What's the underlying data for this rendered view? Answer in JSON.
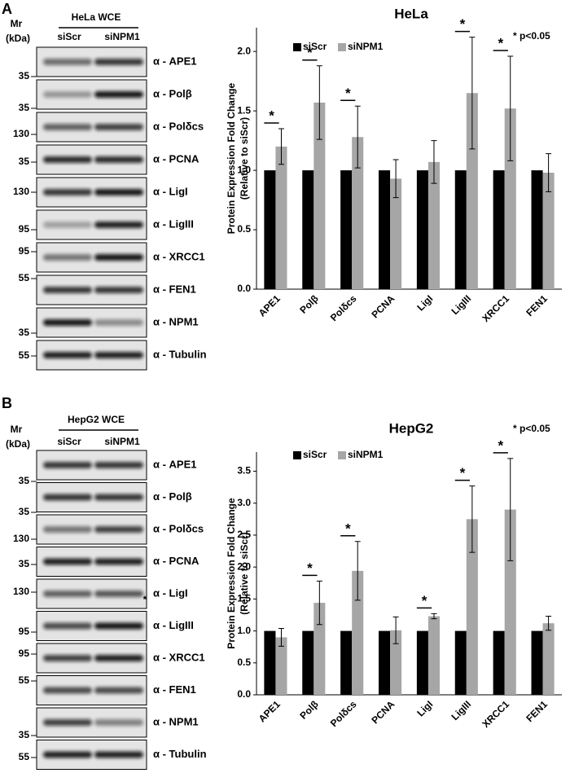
{
  "panels": [
    {
      "label": "A",
      "blot": {
        "mr_label": "Mr",
        "kda_label": "(kDa)",
        "title": "HeLa WCE",
        "lanes": [
          "siScr",
          "siNPM1"
        ],
        "rows": [
          {
            "antibody": "α - APE1",
            "marker": "35"
          },
          {
            "antibody": "α - Polβ",
            "marker": "35"
          },
          {
            "antibody": "α - Polδcs",
            "marker": "130"
          },
          {
            "antibody": "α - PCNA",
            "marker": "35"
          },
          {
            "antibody": "α - LigI",
            "marker": "130"
          },
          {
            "antibody": "α - LigIII",
            "marker": "95"
          },
          {
            "antibody": "α - XRCC1",
            "marker": "95"
          },
          {
            "antibody": "α - FEN1",
            "marker": "55"
          },
          {
            "antibody": "α - NPM1",
            "marker": "35"
          },
          {
            "antibody": "α - Tubulin",
            "marker": "55"
          }
        ]
      }
    },
    {
      "label": "B",
      "blot": {
        "mr_label": "Mr",
        "kda_label": "(kDa)",
        "title": "HepG2 WCE",
        "lanes": [
          "siScr",
          "siNPM1"
        ],
        "rows": [
          {
            "antibody": "α - APE1",
            "marker": "35"
          },
          {
            "antibody": "α - Polβ",
            "marker": "35"
          },
          {
            "antibody": "α - Polδcs",
            "marker": "130"
          },
          {
            "antibody": "α - PCNA",
            "marker": "35"
          },
          {
            "antibody": "α - LigI",
            "marker": "130",
            "note": "*"
          },
          {
            "antibody": "α - LigIII",
            "marker": "95"
          },
          {
            "antibody": "α - XRCC1",
            "marker": "95"
          },
          {
            "antibody": "α - FEN1",
            "marker": "55"
          },
          {
            "antibody": "α - NPM1",
            "marker": "35"
          },
          {
            "antibody": "α - Tubulin",
            "marker": "55"
          }
        ]
      }
    }
  ],
  "chart_data": [
    {
      "type": "bar",
      "title": "HeLa",
      "note": "* p<0.05",
      "ylabel": "Protein Expression Fold Change",
      "ylabel_note": "(Relative to siScr)",
      "categories": [
        "APE1",
        "Polβ",
        "Polδcs",
        "PCNA",
        "LigI",
        "LigIII",
        "XRCC1",
        "FEN1"
      ],
      "series": [
        {
          "name": "siScr",
          "color": "#000000",
          "values": [
            1,
            1,
            1,
            1,
            1,
            1,
            1,
            1
          ]
        },
        {
          "name": "siNPM1",
          "color": "#a6a6a6",
          "values": [
            1.2,
            1.57,
            1.28,
            0.93,
            1.07,
            1.65,
            1.52,
            0.98
          ],
          "errors": [
            0.15,
            0.31,
            0.26,
            0.16,
            0.18,
            0.47,
            0.44,
            0.16
          ]
        }
      ],
      "sig_markers": [
        "*",
        "*",
        "*",
        null,
        null,
        "*",
        "*",
        null
      ],
      "ylim": [
        0,
        2.2
      ],
      "yticks": [
        {
          "value": 0,
          "label": "0.0"
        },
        0.5,
        {
          "value": 1,
          "label": "1.0"
        },
        1.5,
        {
          "value": 2,
          "label": "2.0"
        }
      ]
    },
    {
      "type": "bar",
      "title": "HepG2",
      "note": "* p<0.05",
      "ylabel": "Protein Expression Fold Change",
      "ylabel_note": "(Relative to siScr)",
      "categories": [
        "APE1",
        "Polβ",
        "Polδcs",
        "PCNA",
        "LigI",
        "LigIII",
        "XRCC1",
        "FEN1"
      ],
      "series": [
        {
          "name": "siScr",
          "color": "#000000",
          "values": [
            1,
            1,
            1,
            1,
            1,
            1,
            1,
            1
          ]
        },
        {
          "name": "siNPM1",
          "color": "#a6a6a6",
          "values": [
            0.9,
            1.44,
            1.94,
            1.01,
            1.23,
            2.75,
            2.9,
            1.12
          ],
          "errors": [
            0.14,
            0.34,
            0.46,
            0.21,
            0.04,
            0.52,
            0.8,
            0.11
          ]
        }
      ],
      "sig_markers": [
        null,
        "*",
        "*",
        null,
        "*",
        "*",
        "*",
        null
      ],
      "ylim": [
        0,
        3.8
      ],
      "yticks": [
        {
          "value": 0,
          "label": "0.0"
        },
        0.5,
        {
          "value": 1,
          "label": "1.0"
        },
        1.5,
        {
          "value": 2,
          "label": "2.0"
        },
        2.5,
        {
          "value": 3,
          "label": "3.0"
        },
        3.5
      ]
    }
  ]
}
